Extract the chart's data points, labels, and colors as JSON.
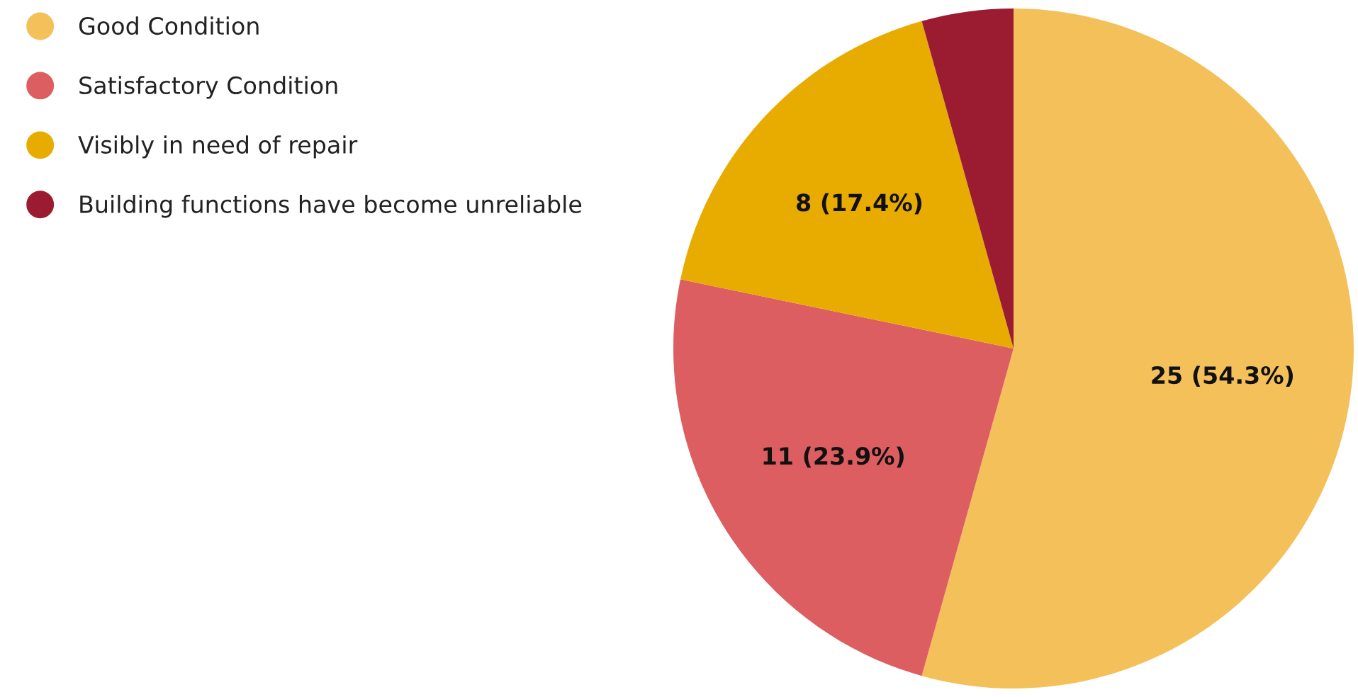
{
  "chart_data": {
    "type": "pie",
    "categories": [
      "Good Condition",
      "Satisfactory Condition",
      "Visibly in need of repair",
      "Building functions have become unreliable"
    ],
    "values": [
      25,
      11,
      8,
      2
    ],
    "colors": [
      "#f3c05a",
      "#dd5e61",
      "#e8ab00",
      "#9b1c31"
    ],
    "value_labels": [
      "25 (54.3%)",
      "11 (23.9%)",
      "8 (17.4%)",
      null
    ],
    "legend": "top left"
  }
}
